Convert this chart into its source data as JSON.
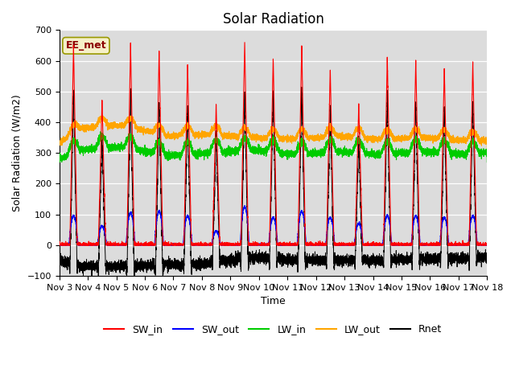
{
  "title": "Solar Radiation",
  "ylabel": "Solar Radiation (W/m2)",
  "xlabel": "Time",
  "ylim": [
    -100,
    700
  ],
  "yticks": [
    -100,
    0,
    100,
    200,
    300,
    400,
    500,
    600,
    700
  ],
  "n_days": 15,
  "pts_per_day": 480,
  "colors": {
    "SW_in": "#FF0000",
    "SW_out": "#0000FF",
    "LW_in": "#00CC00",
    "LW_out": "#FFA500",
    "Rnet": "#000000"
  },
  "legend_label": "EE_met",
  "background_color": "#DCDCDC",
  "title_fontsize": 12,
  "label_fontsize": 9,
  "tick_fontsize": 8,
  "day_peaks_SW_in": [
    650,
    470,
    655,
    635,
    590,
    455,
    665,
    610,
    655,
    575,
    460,
    615,
    600,
    580,
    595
  ],
  "day_peaks_SW_out": [
    95,
    62,
    105,
    110,
    95,
    45,
    125,
    90,
    110,
    90,
    70,
    95,
    95,
    90,
    95
  ]
}
